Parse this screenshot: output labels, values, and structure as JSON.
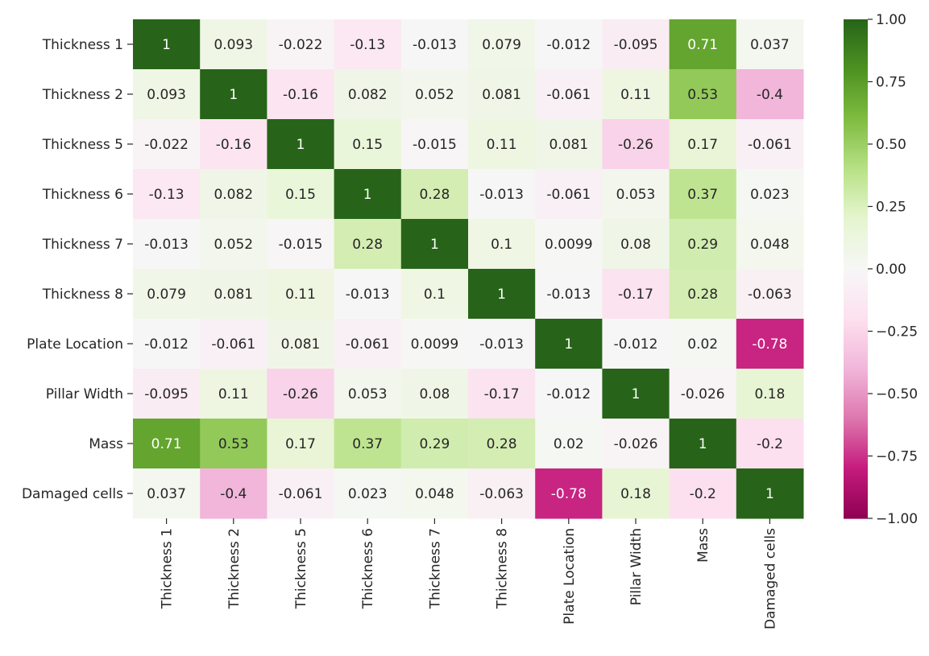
{
  "chart_data": {
    "type": "heatmap",
    "rows": [
      "Thickness 1",
      "Thickness 2",
      "Thickness 5",
      "Thickness 6",
      "Thickness 7",
      "Thickness 8",
      "Plate Location",
      "Pillar Width",
      "Mass",
      "Damaged cells"
    ],
    "columns": [
      "Thickness 1",
      "Thickness 2",
      "Thickness 5",
      "Thickness 6",
      "Thickness 7",
      "Thickness 8",
      "Plate Location",
      "Pillar Width",
      "Mass",
      "Damaged cells"
    ],
    "values": [
      [
        1,
        0.093,
        -0.022,
        -0.13,
        -0.013,
        0.079,
        -0.012,
        -0.095,
        0.71,
        0.037
      ],
      [
        0.093,
        1,
        -0.16,
        0.082,
        0.052,
        0.081,
        -0.061,
        0.11,
        0.53,
        -0.4
      ],
      [
        -0.022,
        -0.16,
        1,
        0.15,
        -0.015,
        0.11,
        0.081,
        -0.26,
        0.17,
        -0.061
      ],
      [
        -0.13,
        0.082,
        0.15,
        1,
        0.28,
        -0.013,
        -0.061,
        0.053,
        0.37,
        0.023
      ],
      [
        -0.013,
        0.052,
        -0.015,
        0.28,
        1,
        0.1,
        0.0099,
        0.08,
        0.29,
        0.048
      ],
      [
        0.079,
        0.081,
        0.11,
        -0.013,
        0.1,
        1,
        -0.013,
        -0.17,
        0.28,
        -0.063
      ],
      [
        -0.012,
        -0.061,
        0.081,
        -0.061,
        0.0099,
        -0.013,
        1,
        -0.012,
        0.02,
        -0.78
      ],
      [
        -0.095,
        0.11,
        -0.26,
        0.053,
        0.08,
        -0.17,
        -0.012,
        1,
        -0.026,
        0.18
      ],
      [
        0.71,
        0.53,
        0.17,
        0.37,
        0.29,
        0.28,
        0.02,
        -0.026,
        1,
        -0.2
      ],
      [
        0.037,
        -0.4,
        -0.061,
        0.023,
        0.048,
        -0.063,
        -0.78,
        0.18,
        -0.2,
        1
      ]
    ],
    "colorbar": {
      "range": [
        -1.0,
        1.0
      ],
      "ticks": [
        1.0,
        0.75,
        0.5,
        0.25,
        0.0,
        -0.25,
        -0.5,
        -0.75,
        -1.0
      ],
      "tick_labels": [
        "1.00",
        "0.75",
        "0.50",
        "0.25",
        "0.00",
        "−0.25",
        "−0.50",
        "−0.75",
        "−1.00"
      ]
    },
    "colormap": "PiYG",
    "annotate": true
  }
}
